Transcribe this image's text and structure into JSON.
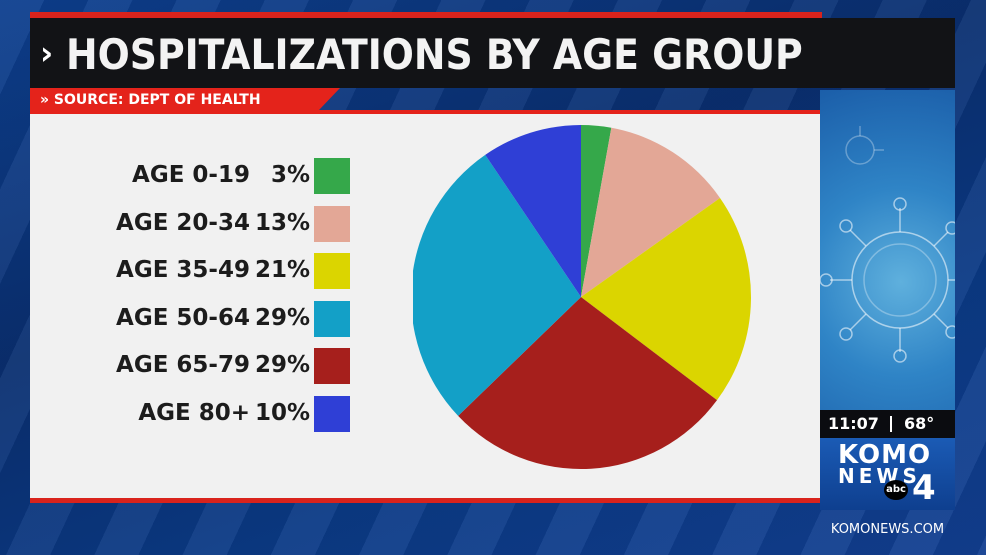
{
  "title": "HOSPITALIZATIONS BY AGE GROUP",
  "title_chevron": "›",
  "source": "SOURCE:  DEPT OF HEALTH",
  "source_chevron": "»",
  "chart_data": {
    "type": "pie",
    "title": "HOSPITALIZATIONS BY AGE GROUP",
    "categories": [
      "AGE 0-19",
      "AGE 20-34",
      "AGE 35-49",
      "AGE 50-64",
      "AGE 65-79",
      "AGE 80+"
    ],
    "values": [
      3,
      13,
      21,
      29,
      29,
      10
    ],
    "labels": [
      "3%",
      "13%",
      "21%",
      "29%",
      "29%",
      "10%"
    ],
    "colors": [
      "#35a84a",
      "#e3a796",
      "#dbd500",
      "#13a0c7",
      "#a61f1c",
      "#2f3fd6"
    ],
    "pie_order": [
      0,
      1,
      2,
      4,
      3,
      5
    ],
    "legend": "left"
  },
  "ticker": {
    "time": "11:07",
    "temp": "68°"
  },
  "logo": {
    "komo": "KOMO",
    "news": "NEWS",
    "abc": "abc",
    "four": "4"
  },
  "url": "KOMONEWS.COM"
}
